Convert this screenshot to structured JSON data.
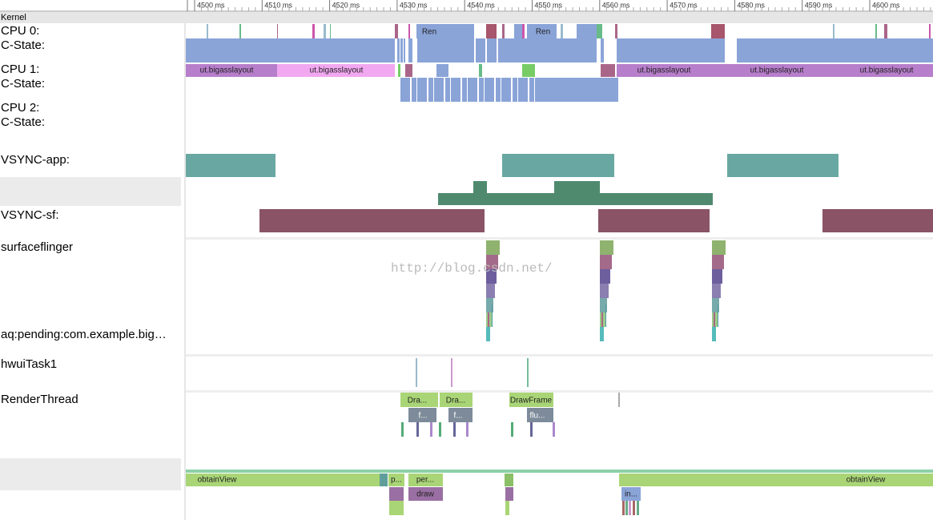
{
  "ruler": {
    "ticks": [
      "4500 ms",
      "4510 ms",
      "4520 ms",
      "4530 ms",
      "4540 ms",
      "4550 ms",
      "4560 ms",
      "4570 ms",
      "4580 ms",
      "4590 ms",
      "4600 ms"
    ]
  },
  "tracks": [
    "Kernel",
    "CPU 0:",
    "C-State:",
    "CPU 1:",
    "C-State:",
    "CPU 2:",
    "C-State:",
    "VSYNC-app:",
    "VSYNC-sf:",
    "surfaceflinger",
    "aq:pending:com.example.big…",
    "hwuiTask1",
    "RenderThread"
  ],
  "slices": [
    "Ren",
    "Ren",
    "ut.bigasslayout",
    "ut.bigasslayout",
    "ut.bigasslayout",
    "ut.bigasslayout",
    "ut.bigasslayout",
    "Dra...",
    "Dra...",
    "DrawFrame",
    "f...",
    "f...",
    "flu...",
    "obtainView",
    "p...",
    "per...",
    "obtainView",
    "draw",
    "in..."
  ],
  "watermark": "http://blog.csdn.net/"
}
